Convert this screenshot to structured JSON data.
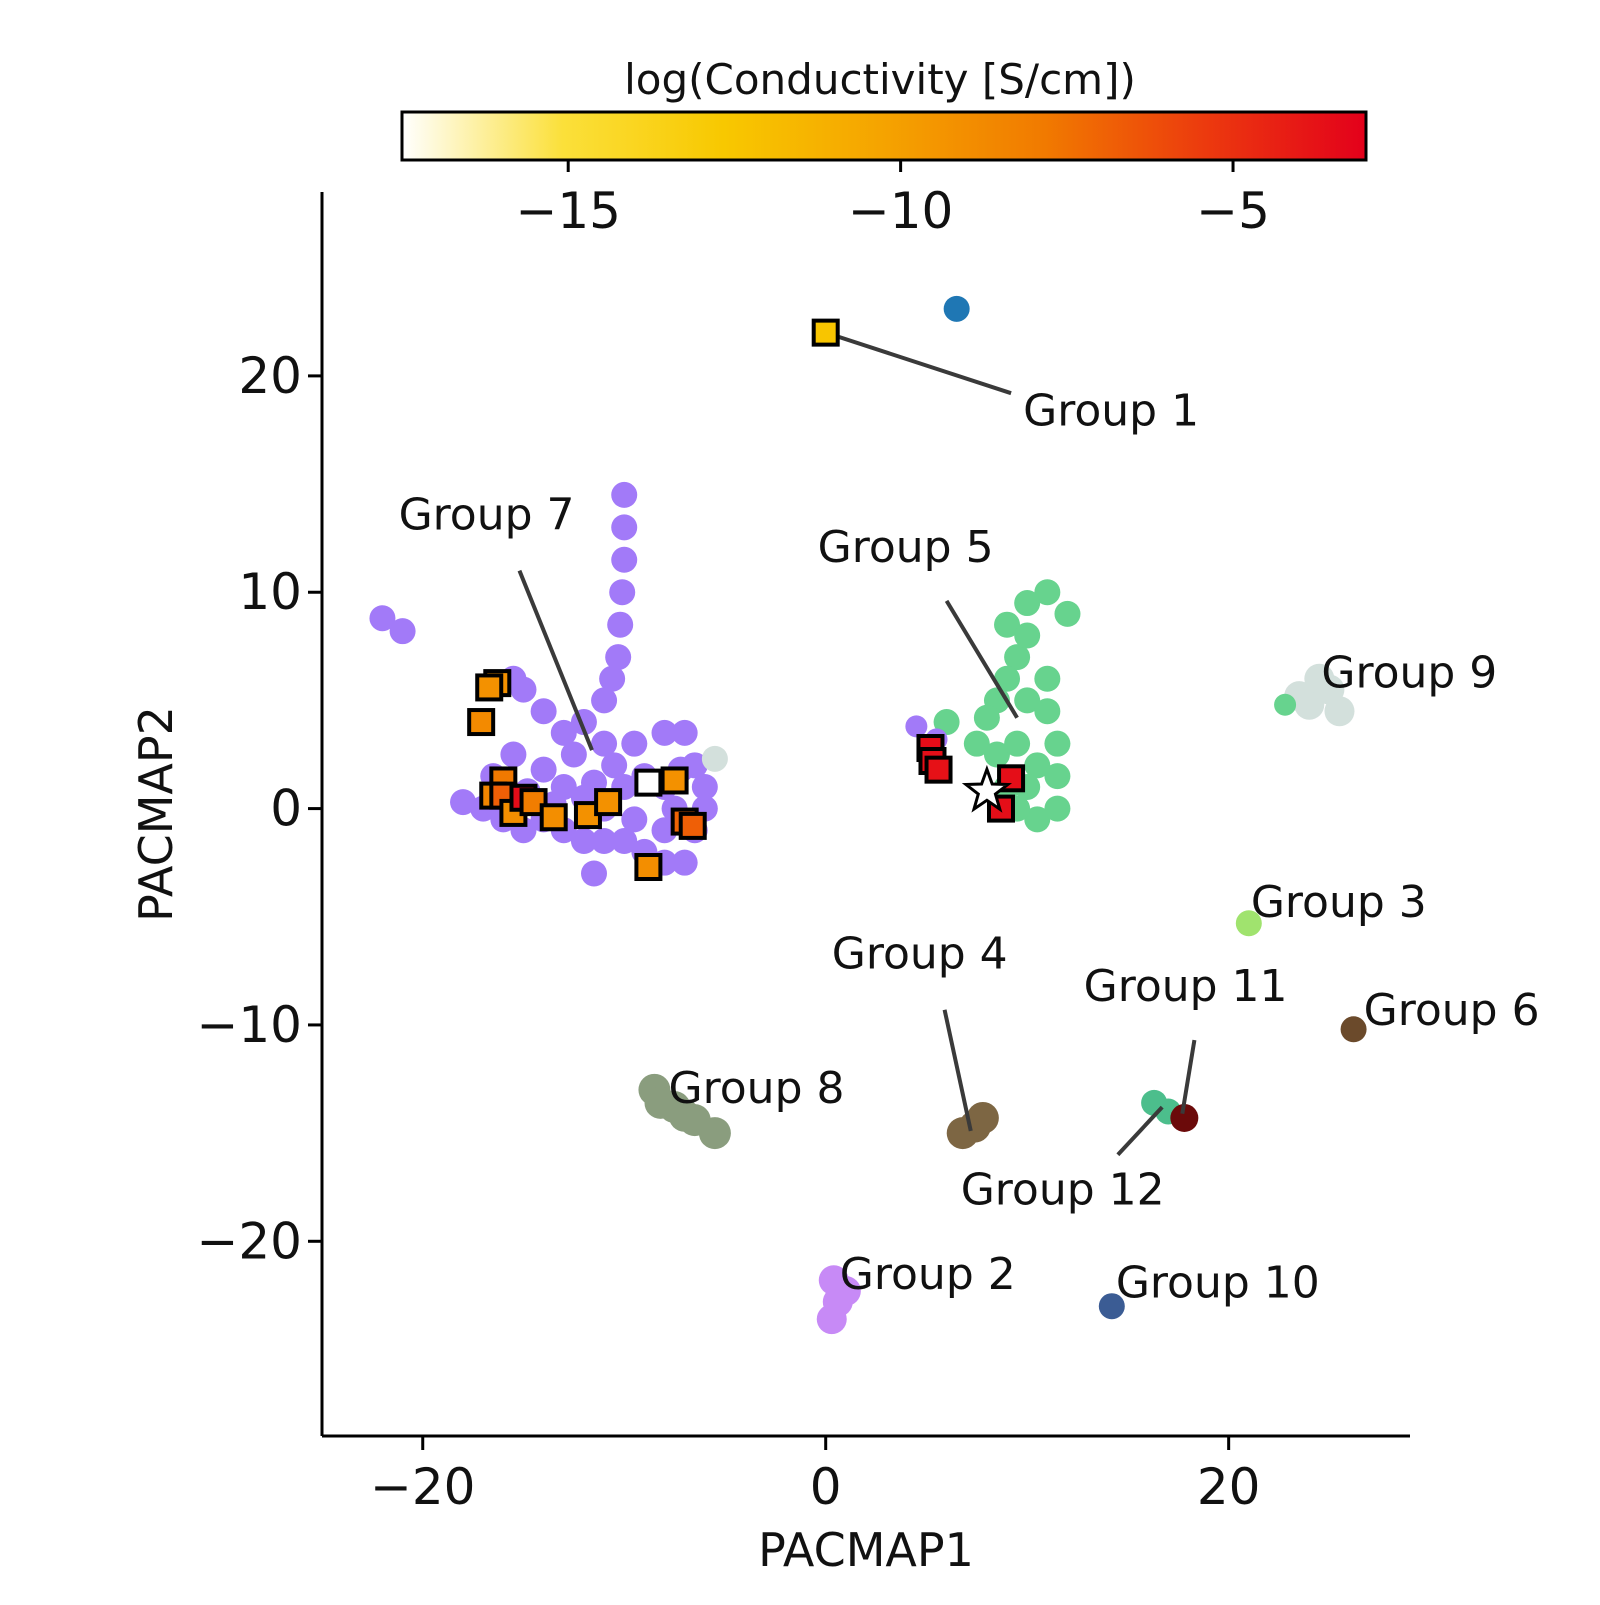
{
  "chart_data": {
    "type": "scatter",
    "xlabel": "PACMAP1",
    "ylabel": "PACMAP2",
    "xlim": [
      -25,
      29
    ],
    "ylim": [
      -29,
      28.5
    ],
    "xticks": [
      "−20",
      "0",
      "20"
    ],
    "xtick_values": [
      -20,
      0,
      20
    ],
    "yticks": [
      "−20",
      "−10",
      "0",
      "10",
      "20"
    ],
    "ytick_values": [
      -20,
      -10,
      0,
      10,
      20
    ],
    "grid": false,
    "colorbar": {
      "label": "log(Conductivity [S/cm])",
      "range": [
        -17.5,
        -3.0
      ],
      "ticks": [
        "−15",
        "−10",
        "−5"
      ],
      "tick_values": [
        -15,
        -10,
        -5
      ],
      "colormap": [
        "#ffffff",
        "#fbe03a",
        "#f8c800",
        "#f5a300",
        "#f17a00",
        "#ec3a0e",
        "#e3001b"
      ]
    },
    "clusters": [
      {
        "color": "#a27af8",
        "points": [
          [
            -10.0,
            14.5
          ],
          [
            -10.0,
            13.0
          ],
          [
            -10.0,
            11.5
          ],
          [
            -10.1,
            10.0
          ],
          [
            -10.2,
            8.5
          ],
          [
            -10.3,
            7.0
          ],
          [
            -10.6,
            6.0
          ],
          [
            -11.0,
            5.0
          ],
          [
            -12.0,
            4.0
          ],
          [
            -13.0,
            3.5
          ],
          [
            -14.0,
            4.5
          ],
          [
            -15.0,
            5.5
          ],
          [
            -15.5,
            6.0
          ],
          [
            -11.0,
            3.0
          ],
          [
            -9.5,
            3.0
          ],
          [
            -8.0,
            3.5
          ],
          [
            -7.0,
            3.5
          ],
          [
            -6.5,
            2.0
          ],
          [
            -6.0,
            1.0
          ],
          [
            -6.0,
            0.0
          ],
          [
            -6.5,
            -1.0
          ],
          [
            -7.0,
            -2.5
          ],
          [
            -8.0,
            -2.5
          ],
          [
            -9.0,
            -2.0
          ],
          [
            -10.0,
            -1.5
          ],
          [
            -11.0,
            -1.5
          ],
          [
            -11.5,
            -3.0
          ],
          [
            -12.0,
            -1.5
          ],
          [
            -13.0,
            -1.0
          ],
          [
            -14.0,
            -0.5
          ],
          [
            -15.0,
            -1.0
          ],
          [
            -16.0,
            -0.5
          ],
          [
            -17.0,
            0.0
          ],
          [
            -18.0,
            0.3
          ],
          [
            -16.5,
            1.5
          ],
          [
            -15.5,
            2.5
          ],
          [
            -14.0,
            1.8
          ],
          [
            -13.0,
            1.0
          ],
          [
            -12.0,
            0.5
          ],
          [
            -11.0,
            0.0
          ],
          [
            -10.0,
            1.0
          ],
          [
            -9.0,
            1.5
          ],
          [
            -8.0,
            1.0
          ],
          [
            -7.5,
            0.0
          ],
          [
            -12.5,
            2.5
          ],
          [
            -13.5,
            0.2
          ],
          [
            -9.5,
            -0.5
          ],
          [
            -22.0,
            8.8
          ],
          [
            -21.0,
            8.2
          ],
          [
            -8.0,
            -1.0
          ],
          [
            -10.5,
            2.0
          ],
          [
            -14.8,
            0.8
          ],
          [
            -7.2,
            1.8
          ],
          [
            -11.5,
            1.2
          ]
        ],
        "r": 13
      },
      {
        "color": "#67d38e",
        "points": [
          [
            11.0,
            10.0
          ],
          [
            12.0,
            9.0
          ],
          [
            10.0,
            9.5
          ],
          [
            9.0,
            8.5
          ],
          [
            9.5,
            7.0
          ],
          [
            9.0,
            6.0
          ],
          [
            8.5,
            5.0
          ],
          [
            10.0,
            5.0
          ],
          [
            11.0,
            4.5
          ],
          [
            11.5,
            3.0
          ],
          [
            11.5,
            1.5
          ],
          [
            11.5,
            0.0
          ],
          [
            10.5,
            -0.5
          ],
          [
            9.5,
            0.0
          ],
          [
            9.0,
            1.0
          ],
          [
            8.5,
            2.5
          ],
          [
            9.5,
            3.0
          ],
          [
            10.5,
            2.0
          ],
          [
            10.0,
            1.0
          ],
          [
            7.5,
            3.0
          ],
          [
            6.0,
            4.0
          ],
          [
            8.0,
            4.2
          ],
          [
            11.0,
            6.0
          ],
          [
            10.0,
            8.0
          ]
        ],
        "r": 13
      },
      {
        "color": "#a27af8",
        "points": [
          [
            4.5,
            3.8
          ],
          [
            5.5,
            3.2
          ]
        ],
        "r": 11
      },
      {
        "color": "#d3e0dc",
        "points": [
          [
            24.5,
            6.0
          ],
          [
            25.0,
            5.5
          ],
          [
            24.0,
            4.8
          ],
          [
            25.5,
            4.5
          ],
          [
            23.5,
            5.2
          ]
        ],
        "r": 15
      },
      {
        "color": "#67d38e",
        "points": [
          [
            22.8,
            4.8
          ]
        ],
        "r": 11
      },
      {
        "color": "#d3e0dc",
        "points": [
          [
            -5.5,
            2.3
          ]
        ],
        "r": 13
      },
      {
        "color": "#1f77b4",
        "points": [
          [
            6.5,
            23.1
          ]
        ],
        "r": 13
      },
      {
        "color": "#8a9d7e",
        "points": [
          [
            -8.5,
            -13.0
          ],
          [
            -7.5,
            -13.8
          ],
          [
            -6.5,
            -14.4
          ],
          [
            -5.5,
            -15.0
          ],
          [
            -7.0,
            -14.2
          ],
          [
            -8.2,
            -13.6
          ]
        ],
        "r": 16
      },
      {
        "color": "#7d6643",
        "points": [
          [
            6.8,
            -15.0
          ],
          [
            7.4,
            -14.7
          ],
          [
            7.8,
            -14.3
          ]
        ],
        "r": 16
      },
      {
        "color": "#4cbe8c",
        "points": [
          [
            16.3,
            -13.6
          ],
          [
            17.0,
            -14.0
          ]
        ],
        "r": 13
      },
      {
        "color": "#6b0a0a",
        "points": [
          [
            17.8,
            -14.3
          ]
        ],
        "r": 14
      },
      {
        "color": "#a0e36e",
        "points": [
          [
            21.0,
            -5.3
          ]
        ],
        "r": 13
      },
      {
        "color": "#6b4a2b",
        "points": [
          [
            26.2,
            -10.2
          ]
        ],
        "r": 13
      },
      {
        "color": "#c78af6",
        "points": [
          [
            0.4,
            -21.8
          ],
          [
            0.6,
            -22.8
          ],
          [
            0.3,
            -23.6
          ],
          [
            1.0,
            -22.3
          ]
        ],
        "r": 15
      },
      {
        "color": "#3b5c94",
        "points": [
          [
            14.2,
            -23.0
          ]
        ],
        "r": 13
      }
    ],
    "labeled_squares": [
      {
        "x": 0.0,
        "y": 22.0,
        "c": -12.5
      },
      {
        "x": -16.3,
        "y": 5.8,
        "c": -9.2
      },
      {
        "x": -16.7,
        "y": 5.6,
        "c": -9.2
      },
      {
        "x": -17.1,
        "y": 4.0,
        "c": -8.8
      },
      {
        "x": -16.0,
        "y": 1.3,
        "c": -7.8
      },
      {
        "x": -16.5,
        "y": 0.6,
        "c": -8.5
      },
      {
        "x": -16.0,
        "y": 0.6,
        "c": -6.8
      },
      {
        "x": -15.5,
        "y": -0.2,
        "c": -9.0
      },
      {
        "x": -15.0,
        "y": 0.5,
        "c": -3.5
      },
      {
        "x": -14.5,
        "y": 0.3,
        "c": -8.0
      },
      {
        "x": -13.5,
        "y": -0.4,
        "c": -9.0
      },
      {
        "x": -11.8,
        "y": -0.3,
        "c": -9.2
      },
      {
        "x": -10.8,
        "y": 0.3,
        "c": -9.2
      },
      {
        "x": -8.8,
        "y": 1.2,
        "c": -17.5
      },
      {
        "x": -7.5,
        "y": 1.3,
        "c": -9.2
      },
      {
        "x": -7.0,
        "y": -0.6,
        "c": -7.0
      },
      {
        "x": -6.6,
        "y": -0.8,
        "c": -6.8
      },
      {
        "x": -8.8,
        "y": -2.7,
        "c": -9.0
      },
      {
        "x": 5.2,
        "y": 2.8,
        "c": -3.5
      },
      {
        "x": 5.3,
        "y": 2.2,
        "c": -3.6
      },
      {
        "x": 5.6,
        "y": 1.8,
        "c": -3.7
      },
      {
        "x": 9.2,
        "y": 1.4,
        "c": -3.6
      },
      {
        "x": 8.7,
        "y": 0.0,
        "c": -3.6
      }
    ],
    "highlight_star": {
      "x": 8.0,
      "y": 0.8
    },
    "annotations": [
      {
        "text": "Group 1",
        "tx": 9.8,
        "ty": 17.7,
        "anchor": "start",
        "line": [
          [
            0.0,
            22.0
          ],
          [
            9.2,
            19.2
          ]
        ]
      },
      {
        "text": "Group 7",
        "tx": -21.2,
        "ty": 12.9,
        "anchor": "start",
        "line": [
          [
            -15.2,
            11.0
          ],
          [
            -11.6,
            2.7
          ]
        ]
      },
      {
        "text": "Group 5",
        "tx": -0.4,
        "ty": 11.4,
        "anchor": "start",
        "line": [
          [
            6.0,
            9.6
          ],
          [
            9.5,
            4.2
          ]
        ]
      },
      {
        "text": "Group 9",
        "tx": 24.6,
        "ty": 5.6,
        "anchor": "start",
        "line": null
      },
      {
        "text": "Group 3",
        "tx": 21.1,
        "ty": -5.0,
        "anchor": "start",
        "line": null
      },
      {
        "text": "Group 4",
        "tx": 0.3,
        "ty": -7.4,
        "anchor": "start",
        "line": [
          [
            5.9,
            -9.3
          ],
          [
            7.2,
            -14.9
          ]
        ]
      },
      {
        "text": "Group 11",
        "tx": 12.8,
        "ty": -8.9,
        "anchor": "start",
        "line": [
          [
            18.3,
            -10.7
          ],
          [
            17.7,
            -14.1
          ]
        ]
      },
      {
        "text": "Group 6",
        "tx": 26.7,
        "ty": -10.0,
        "anchor": "start",
        "line": null
      },
      {
        "text": "Group 8",
        "tx": -7.8,
        "ty": -13.6,
        "anchor": "start",
        "line": null
      },
      {
        "text": "Group 12",
        "tx": 6.7,
        "ty": -18.3,
        "anchor": "start",
        "line": [
          [
            14.5,
            -16.0
          ],
          [
            16.7,
            -13.8
          ]
        ]
      },
      {
        "text": "Group 2",
        "tx": 0.7,
        "ty": -22.2,
        "anchor": "start",
        "line": null
      },
      {
        "text": "Group 10",
        "tx": 14.4,
        "ty": -22.6,
        "anchor": "start",
        "line": null
      }
    ]
  }
}
